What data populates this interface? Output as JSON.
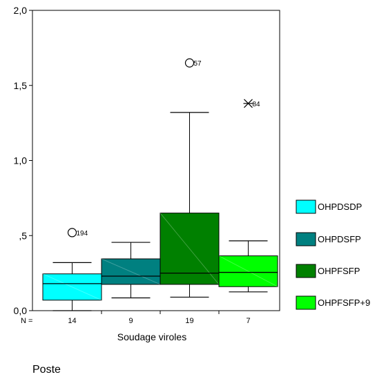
{
  "chart_data": {
    "type": "boxplot",
    "title": "",
    "xlabel": "Soudage viroles",
    "ylabel": "",
    "ylim": [
      0,
      2
    ],
    "yticks": [
      {
        "value": 0,
        "label": "0,0"
      },
      {
        "value": 0.5,
        "label": ",5"
      },
      {
        "value": 1.0,
        "label": "1,0"
      },
      {
        "value": 1.5,
        "label": "1,5"
      },
      {
        "value": 2.0,
        "label": "2,0"
      }
    ],
    "n_prefix": "N =",
    "groups": [
      {
        "name": "OHPDSDP",
        "n": "14",
        "color": "#00FFFF",
        "min": 0.0,
        "q1": 0.07,
        "median": 0.18,
        "q3": 0.245,
        "max": 0.32,
        "outliers": [
          {
            "value": 0.52,
            "label": "194",
            "marker": "circle"
          }
        ]
      },
      {
        "name": "OHPDSFP",
        "n": "9",
        "color": "#008080",
        "min": 0.085,
        "q1": 0.175,
        "median": 0.23,
        "q3": 0.345,
        "max": 0.455,
        "outliers": []
      },
      {
        "name": "OHPFSFP",
        "n": "19",
        "color": "#008000",
        "min": 0.09,
        "q1": 0.175,
        "median": 0.25,
        "q3": 0.65,
        "max": 1.32,
        "outliers": [
          {
            "value": 1.65,
            "label": "57",
            "marker": "circle"
          }
        ]
      },
      {
        "name": "OHPFSFP+9",
        "n": "7",
        "color": "#00FF00",
        "min": 0.125,
        "q1": 0.16,
        "median": 0.255,
        "q3": 0.365,
        "max": 0.465,
        "outliers": [
          {
            "value": 1.38,
            "label": "84",
            "marker": "star"
          }
        ]
      }
    ],
    "legend_position": "right"
  },
  "footer_text": "Poste"
}
